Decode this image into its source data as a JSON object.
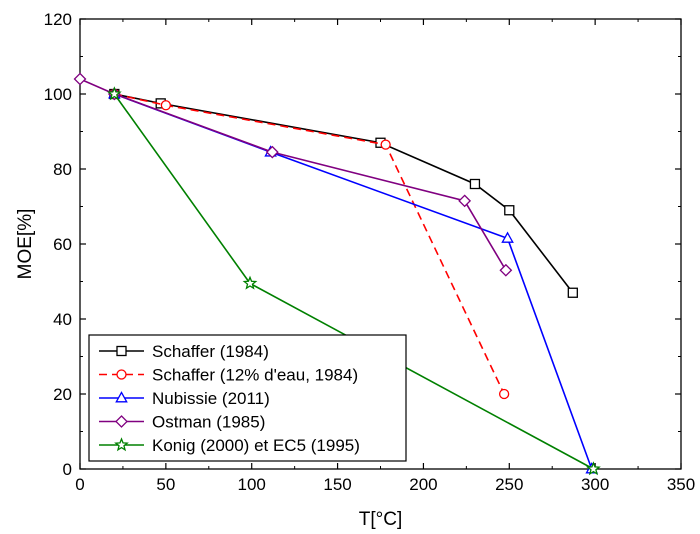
{
  "chart_data": {
    "type": "line",
    "title": "",
    "xlabel": "T[°C]",
    "ylabel": "MOE[%]",
    "xlim": [
      0,
      350
    ],
    "ylim": [
      0,
      120
    ],
    "xticks": [
      0,
      50,
      100,
      150,
      200,
      250,
      300,
      350
    ],
    "yticks": [
      0,
      20,
      40,
      60,
      80,
      100,
      120
    ],
    "grid": false,
    "legend_position": "bottom-left",
    "series": [
      {
        "name": "Schaffer (1984)",
        "color": "#000000",
        "dash": "solid",
        "marker": "square",
        "points": [
          [
            20,
            100
          ],
          [
            47,
            97.5
          ],
          [
            175,
            87
          ],
          [
            230,
            76
          ],
          [
            250,
            69
          ],
          [
            287,
            47
          ]
        ]
      },
      {
        "name": "Schaffer (12% d'eau, 1984)",
        "color": "#ff0000",
        "dash": "dashed",
        "marker": "circle",
        "points": [
          [
            20,
            100
          ],
          [
            50,
            97
          ],
          [
            178,
            86.5
          ],
          [
            247,
            20
          ]
        ]
      },
      {
        "name": "Nubissie (2011)",
        "color": "#0000ff",
        "dash": "solid",
        "marker": "triangle",
        "points": [
          [
            20,
            100
          ],
          [
            111,
            84.5
          ],
          [
            249,
            61.5
          ],
          [
            298,
            0
          ]
        ]
      },
      {
        "name": "Ostman (1985)",
        "color": "#800080",
        "dash": "solid",
        "marker": "diamond",
        "points": [
          [
            0,
            104
          ],
          [
            20,
            100
          ],
          [
            112,
            84.5
          ],
          [
            224,
            71.5
          ],
          [
            248,
            53
          ]
        ]
      },
      {
        "name": "Konig (2000) et EC5 (1995)",
        "color": "#008000",
        "dash": "solid",
        "marker": "star",
        "points": [
          [
            20,
            100
          ],
          [
            99,
            49.5
          ],
          [
            299,
            0
          ]
        ]
      }
    ]
  }
}
